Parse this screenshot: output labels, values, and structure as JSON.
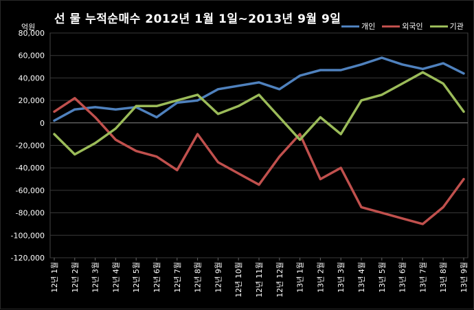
{
  "chart_data": {
    "type": "line",
    "title": "선 물 누적순매수 2012년 1월 1일~2013년 9월 9일",
    "ylabel": "억원",
    "xlabel": "",
    "ylim": [
      -120000,
      80000
    ],
    "yticks": [
      80000,
      60000,
      40000,
      20000,
      0,
      -20000,
      -40000,
      -60000,
      -80000,
      -100000,
      -120000
    ],
    "ytick_labels": [
      "80,000",
      "60,000",
      "40,000",
      "20,000",
      "0",
      "-20,000",
      "-40,000",
      "-60,000",
      "-80,000",
      "-100,000",
      "-120,000"
    ],
    "categories": [
      "12년 1월",
      "12년 2월",
      "12년 3월",
      "12년 4월",
      "12년 5월",
      "12년 6월",
      "12년 7월",
      "12년 8월",
      "12년 9월",
      "12년 10월",
      "12년 11월",
      "12년 12월",
      "13년 1월",
      "13년 2월",
      "13년 3월",
      "13년 4월",
      "13년 5월",
      "13년 6월",
      "13년 7월",
      "13년 8월",
      "13년 9월"
    ],
    "grid": true,
    "legend_position": "top-right",
    "series": [
      {
        "name": "개인",
        "color": "#4f81bd",
        "values": [
          2000,
          12000,
          14000,
          12000,
          14000,
          5000,
          18000,
          20000,
          30000,
          33000,
          36000,
          30000,
          42000,
          47000,
          47000,
          52000,
          58000,
          52000,
          48000,
          53000,
          44000
        ]
      },
      {
        "name": "외국인",
        "color": "#c0504d",
        "values": [
          10000,
          22000,
          5000,
          -15000,
          -25000,
          -30000,
          -42000,
          -10000,
          -35000,
          -45000,
          -55000,
          -30000,
          -10000,
          -50000,
          -40000,
          -75000,
          -80000,
          -85000,
          -90000,
          -75000,
          -50000
        ]
      },
      {
        "name": "기관",
        "color": "#9bbb59",
        "values": [
          -10000,
          -28000,
          -18000,
          -5000,
          15000,
          15000,
          20000,
          25000,
          8000,
          15000,
          25000,
          5000,
          -15000,
          5000,
          -10000,
          20000,
          25000,
          35000,
          45000,
          35000,
          10000
        ]
      }
    ]
  }
}
